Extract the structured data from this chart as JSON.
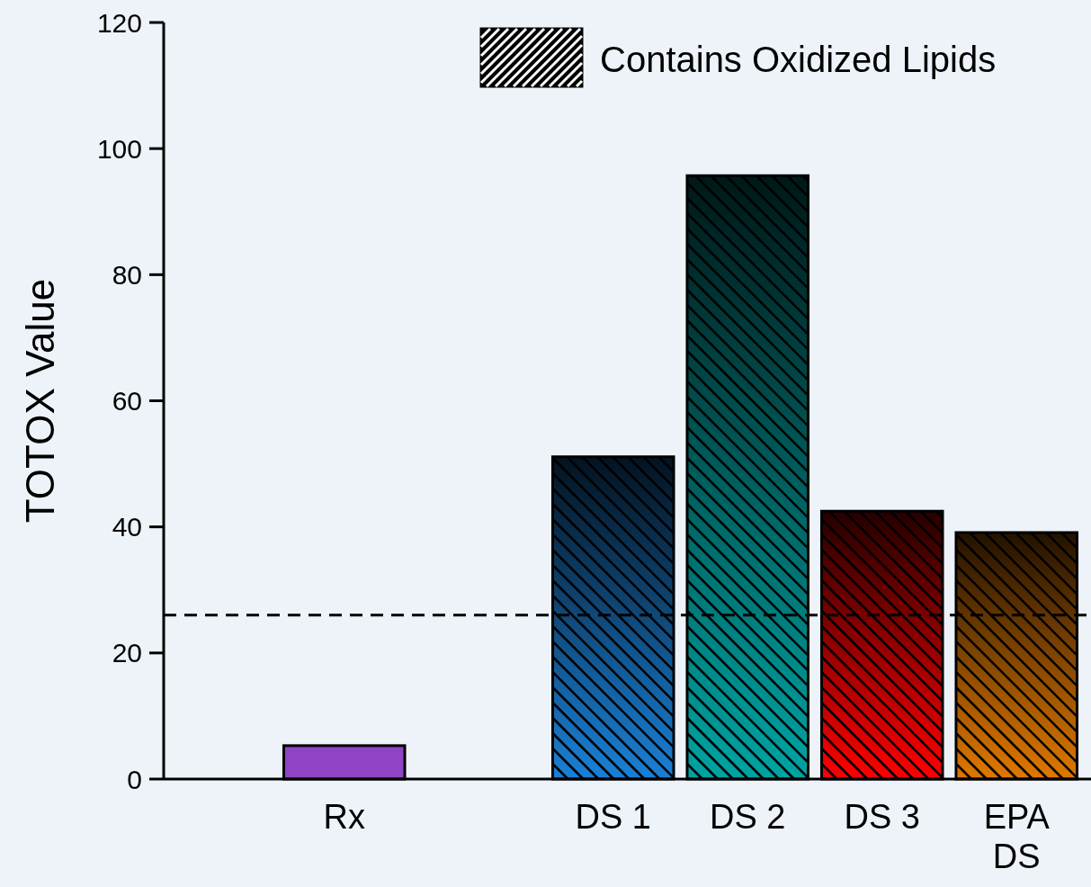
{
  "chart_data": {
    "type": "bar",
    "ylabel": "TOTOX Value",
    "categories": [
      "Rx",
      null,
      "DS 1",
      "DS 2",
      "DS 3",
      "EPA DS"
    ],
    "series": [
      {
        "color": "#8e44c4",
        "values": [
          5.3,
          null,
          null,
          null,
          null,
          null
        ]
      },
      {
        "name": "Contains Oxidized Lipids",
        "color": "#000000",
        "colors": [
          null,
          null,
          "#1a80d6",
          "#00a3a3",
          "#ff0000",
          "#e07800"
        ],
        "values": [
          null,
          null,
          51.1,
          95.7,
          42.5,
          39.1
        ]
      }
    ],
    "ylim": [
      0,
      120
    ],
    "yticks": [
      0,
      20,
      40,
      60,
      80,
      100,
      120
    ],
    "grid": false,
    "legend": "top right",
    "ref_lines": [
      {
        "axis": "y",
        "value": 26,
        "line_style": "dashed",
        "color": "#000000"
      }
    ]
  }
}
